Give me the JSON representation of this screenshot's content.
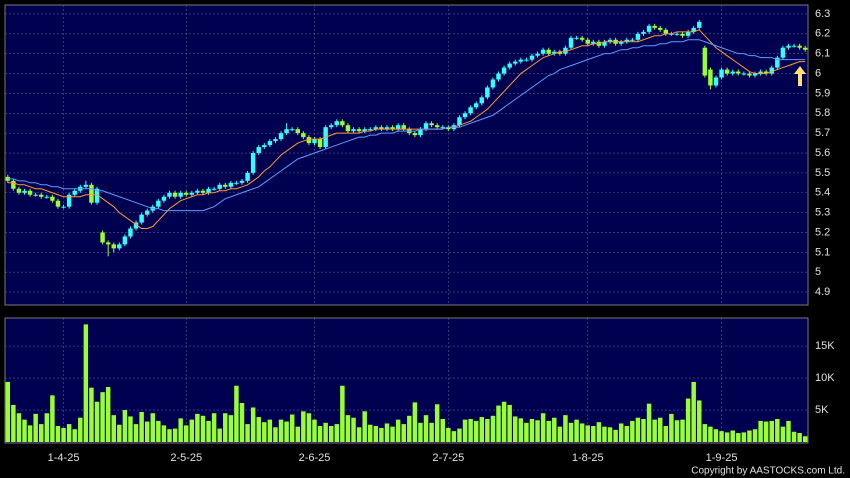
{
  "chart_data": {
    "type": "candlestick",
    "categories": [
      null,
      null,
      null,
      null,
      null,
      null,
      null,
      null,
      null,
      null,
      "1-4-25",
      null,
      null,
      null,
      null,
      null,
      null,
      null,
      null,
      null,
      null,
      null,
      null,
      null,
      null,
      null,
      null,
      null,
      null,
      null,
      null,
      null,
      "2-5-25",
      null,
      null,
      null,
      null,
      null,
      null,
      null,
      null,
      null,
      null,
      null,
      null,
      null,
      null,
      null,
      null,
      null,
      null,
      null,
      null,
      null,
      null,
      "2-6-25",
      null,
      null,
      null,
      null,
      null,
      null,
      null,
      null,
      null,
      null,
      null,
      null,
      null,
      null,
      null,
      null,
      null,
      null,
      null,
      null,
      null,
      null,
      null,
      "2-7-25",
      null,
      null,
      null,
      null,
      null,
      null,
      null,
      null,
      null,
      null,
      null,
      null,
      null,
      null,
      null,
      null,
      null,
      null,
      null,
      null,
      null,
      null,
      null,
      null,
      "1-8-25",
      null,
      null,
      null,
      null,
      null,
      null,
      null,
      null,
      null,
      null,
      null,
      null,
      null,
      null,
      null,
      null,
      null,
      null,
      null,
      null,
      null,
      null,
      null,
      "1-9-25",
      null,
      null,
      null,
      null,
      null,
      null,
      null,
      null,
      null,
      null,
      null,
      null,
      null,
      null,
      null
    ],
    "open": [
      5.48,
      5.46,
      5.42,
      5.4,
      5.41,
      5.39,
      5.39,
      5.38,
      5.38,
      5.36,
      5.33,
      5.33,
      5.39,
      5.41,
      5.43,
      5.44,
      5.35,
      5.2,
      5.15,
      5.14,
      5.12,
      5.14,
      5.18,
      5.22,
      5.25,
      5.29,
      5.31,
      5.33,
      5.36,
      5.38,
      5.4,
      5.38,
      5.4,
      5.39,
      5.4,
      5.41,
      5.4,
      5.42,
      5.42,
      5.44,
      5.43,
      5.45,
      5.45,
      5.46,
      5.5,
      5.6,
      5.63,
      5.64,
      5.66,
      5.67,
      5.7,
      5.72,
      5.72,
      5.7,
      5.68,
      5.65,
      5.67,
      5.63,
      5.73,
      5.74,
      5.76,
      5.74,
      5.71,
      5.72,
      5.71,
      5.72,
      5.72,
      5.73,
      5.72,
      5.73,
      5.72,
      5.74,
      5.72,
      5.7,
      5.69,
      5.72,
      5.75,
      5.74,
      5.73,
      5.73,
      5.72,
      5.74,
      5.78,
      5.8,
      5.83,
      5.85,
      5.88,
      5.93,
      5.97,
      6.0,
      6.03,
      6.05,
      6.06,
      6.07,
      6.07,
      6.09,
      6.1,
      6.12,
      6.1,
      6.11,
      6.1,
      6.13,
      6.18,
      6.18,
      6.17,
      6.15,
      6.16,
      6.14,
      6.16,
      6.17,
      6.15,
      6.16,
      6.17,
      6.17,
      6.2,
      6.21,
      6.24,
      6.23,
      6.22,
      6.2,
      6.2,
      6.2,
      6.19,
      6.21,
      6.23,
      6.13,
      6.02,
      5.94,
      5.98,
      6.02,
      6.0,
      6.01,
      6.0,
      6.0,
      5.99,
      6.0,
      6.01,
      6.0,
      6.03,
      6.08,
      6.13,
      6.14,
      6.14,
      6.13
    ],
    "high": [
      5.49,
      5.47,
      5.43,
      5.42,
      5.42,
      5.4,
      5.4,
      5.39,
      5.39,
      5.37,
      5.34,
      5.4,
      5.42,
      5.44,
      5.46,
      5.45,
      5.43,
      5.21,
      5.16,
      5.15,
      5.15,
      5.19,
      5.23,
      5.26,
      5.3,
      5.32,
      5.34,
      5.37,
      5.39,
      5.41,
      5.41,
      5.41,
      5.41,
      5.41,
      5.42,
      5.42,
      5.43,
      5.43,
      5.45,
      5.45,
      5.46,
      5.46,
      5.47,
      5.51,
      5.61,
      5.64,
      5.65,
      5.67,
      5.68,
      5.71,
      5.75,
      5.73,
      5.73,
      5.71,
      5.69,
      5.68,
      5.68,
      5.74,
      5.75,
      5.77,
      5.77,
      5.75,
      5.73,
      5.73,
      5.73,
      5.73,
      5.74,
      5.74,
      5.74,
      5.74,
      5.75,
      5.75,
      5.73,
      5.71,
      5.73,
      5.76,
      5.76,
      5.75,
      5.74,
      5.74,
      5.75,
      5.79,
      5.81,
      5.84,
      5.86,
      5.89,
      5.94,
      5.98,
      6.01,
      6.04,
      6.06,
      6.07,
      6.08,
      6.08,
      6.1,
      6.11,
      6.13,
      6.13,
      6.12,
      6.12,
      6.14,
      6.19,
      6.19,
      6.19,
      6.18,
      6.17,
      6.17,
      6.17,
      6.18,
      6.18,
      6.17,
      6.18,
      6.18,
      6.21,
      6.22,
      6.25,
      6.25,
      6.24,
      6.23,
      6.21,
      6.21,
      6.21,
      6.22,
      6.24,
      6.27,
      6.14,
      6.03,
      5.99,
      6.03,
      6.03,
      6.02,
      6.02,
      6.01,
      6.01,
      6.01,
      6.02,
      6.02,
      6.04,
      6.09,
      6.14,
      6.15,
      6.15,
      6.15,
      6.14
    ],
    "low": [
      5.45,
      5.41,
      5.39,
      5.39,
      5.38,
      5.38,
      5.37,
      5.37,
      5.35,
      5.32,
      5.32,
      5.32,
      5.38,
      5.4,
      5.42,
      5.34,
      5.34,
      5.14,
      5.08,
      5.1,
      5.11,
      5.13,
      5.17,
      5.21,
      5.24,
      5.28,
      5.3,
      5.32,
      5.35,
      5.37,
      5.37,
      5.37,
      5.38,
      5.38,
      5.39,
      5.39,
      5.39,
      5.41,
      5.41,
      5.42,
      5.42,
      5.44,
      5.44,
      5.45,
      5.49,
      5.59,
      5.62,
      5.63,
      5.65,
      5.66,
      5.69,
      5.71,
      5.69,
      5.67,
      5.64,
      5.64,
      5.62,
      5.62,
      5.72,
      5.73,
      5.73,
      5.7,
      5.7,
      5.7,
      5.7,
      5.71,
      5.71,
      5.71,
      5.71,
      5.71,
      5.71,
      5.71,
      5.69,
      5.68,
      5.68,
      5.71,
      5.73,
      5.72,
      5.72,
      5.71,
      5.71,
      5.73,
      5.77,
      5.79,
      5.82,
      5.84,
      5.87,
      5.92,
      5.96,
      5.99,
      6.02,
      6.04,
      6.05,
      6.06,
      6.06,
      6.08,
      6.09,
      6.09,
      6.09,
      6.09,
      6.09,
      6.12,
      6.17,
      6.16,
      6.14,
      6.14,
      6.13,
      6.13,
      6.15,
      6.14,
      6.14,
      6.15,
      6.16,
      6.16,
      6.19,
      6.2,
      6.22,
      6.21,
      6.19,
      6.19,
      6.19,
      6.18,
      6.18,
      6.2,
      6.22,
      5.98,
      5.92,
      5.93,
      5.97,
      5.99,
      5.99,
      5.99,
      5.99,
      5.98,
      5.98,
      5.99,
      5.99,
      5.99,
      6.02,
      6.07,
      6.12,
      6.13,
      6.12,
      6.11
    ],
    "close": [
      5.46,
      5.42,
      5.4,
      5.41,
      5.39,
      5.39,
      5.38,
      5.38,
      5.36,
      5.33,
      5.33,
      5.39,
      5.41,
      5.43,
      5.44,
      5.35,
      5.42,
      5.15,
      5.14,
      5.12,
      5.14,
      5.18,
      5.22,
      5.25,
      5.29,
      5.31,
      5.33,
      5.36,
      5.38,
      5.4,
      5.38,
      5.4,
      5.39,
      5.4,
      5.41,
      5.4,
      5.42,
      5.42,
      5.44,
      5.43,
      5.45,
      5.45,
      5.46,
      5.5,
      5.6,
      5.63,
      5.64,
      5.66,
      5.67,
      5.7,
      5.72,
      5.72,
      5.7,
      5.68,
      5.65,
      5.67,
      5.63,
      5.73,
      5.74,
      5.76,
      5.74,
      5.71,
      5.72,
      5.71,
      5.72,
      5.72,
      5.73,
      5.72,
      5.73,
      5.72,
      5.74,
      5.72,
      5.7,
      5.69,
      5.72,
      5.75,
      5.74,
      5.73,
      5.73,
      5.72,
      5.74,
      5.78,
      5.8,
      5.83,
      5.85,
      5.88,
      5.93,
      5.97,
      6.0,
      6.03,
      6.05,
      6.06,
      6.07,
      6.07,
      6.09,
      6.1,
      6.12,
      6.1,
      6.11,
      6.1,
      6.13,
      6.18,
      6.18,
      6.17,
      6.15,
      6.16,
      6.14,
      6.16,
      6.17,
      6.15,
      6.16,
      6.17,
      6.17,
      6.2,
      6.21,
      6.24,
      6.23,
      6.22,
      6.2,
      6.2,
      6.2,
      6.19,
      6.21,
      6.23,
      6.26,
      5.99,
      5.94,
      5.98,
      6.02,
      6.0,
      6.01,
      6.0,
      6.0,
      5.99,
      6.0,
      6.01,
      6.0,
      6.03,
      6.08,
      6.13,
      6.14,
      6.14,
      6.13,
      6.12
    ],
    "up_color": "#33ffff",
    "down_color": "#99ff33",
    "moving_averages": [
      {
        "color": "#ff9933",
        "values": [
          5.45,
          5.45,
          5.44,
          5.44,
          5.43,
          5.42,
          5.42,
          5.41,
          5.4,
          5.39,
          5.38,
          5.38,
          5.38,
          5.38,
          5.39,
          5.39,
          5.39,
          5.37,
          5.35,
          5.33,
          5.3,
          5.28,
          5.26,
          5.24,
          5.22,
          5.22,
          5.23,
          5.26,
          5.29,
          5.32,
          5.34,
          5.36,
          5.37,
          5.38,
          5.39,
          5.39,
          5.4,
          5.4,
          5.41,
          5.41,
          5.42,
          5.42,
          5.43,
          5.44,
          5.46,
          5.48,
          5.51,
          5.53,
          5.56,
          5.59,
          5.61,
          5.63,
          5.65,
          5.66,
          5.67,
          5.67,
          5.67,
          5.68,
          5.69,
          5.7,
          5.7,
          5.7,
          5.7,
          5.7,
          5.71,
          5.71,
          5.72,
          5.72,
          5.72,
          5.72,
          5.72,
          5.72,
          5.72,
          5.72,
          5.72,
          5.72,
          5.72,
          5.72,
          5.72,
          5.73,
          5.73,
          5.74,
          5.75,
          5.76,
          5.78,
          5.8,
          5.82,
          5.85,
          5.88,
          5.91,
          5.94,
          5.97,
          6.0,
          6.02,
          6.04,
          6.06,
          6.08,
          6.09,
          6.1,
          6.11,
          6.11,
          6.12,
          6.13,
          6.14,
          6.14,
          6.15,
          6.15,
          6.16,
          6.16,
          6.16,
          6.16,
          6.16,
          6.16,
          6.16,
          6.17,
          6.18,
          6.19,
          6.19,
          6.2,
          6.2,
          6.21,
          6.21,
          6.21,
          6.21,
          6.22,
          6.19,
          6.16,
          6.13,
          6.11,
          6.09,
          6.07,
          6.05,
          6.03,
          6.01,
          6.0,
          6.0,
          6.0,
          6.01,
          6.02,
          6.03,
          6.04,
          6.05,
          6.06,
          6.06
        ]
      },
      {
        "color": "#5b9bff",
        "values": [
          5.47,
          5.47,
          5.46,
          5.46,
          5.45,
          5.45,
          5.44,
          5.44,
          5.43,
          5.43,
          5.42,
          5.42,
          5.42,
          5.42,
          5.42,
          5.42,
          5.41,
          5.41,
          5.4,
          5.39,
          5.38,
          5.37,
          5.36,
          5.35,
          5.34,
          5.33,
          5.32,
          5.32,
          5.31,
          5.31,
          5.31,
          5.31,
          5.31,
          5.31,
          5.31,
          5.31,
          5.32,
          5.33,
          5.35,
          5.37,
          5.38,
          5.39,
          5.4,
          5.41,
          5.42,
          5.43,
          5.45,
          5.47,
          5.49,
          5.51,
          5.53,
          5.55,
          5.57,
          5.58,
          5.59,
          5.6,
          5.61,
          5.62,
          5.63,
          5.64,
          5.65,
          5.66,
          5.67,
          5.68,
          5.68,
          5.69,
          5.69,
          5.7,
          5.7,
          5.7,
          5.71,
          5.71,
          5.71,
          5.71,
          5.72,
          5.72,
          5.72,
          5.72,
          5.72,
          5.73,
          5.73,
          5.73,
          5.74,
          5.75,
          5.76,
          5.77,
          5.78,
          5.79,
          5.81,
          5.83,
          5.85,
          5.87,
          5.89,
          5.91,
          5.93,
          5.95,
          5.97,
          5.99,
          6.0,
          6.02,
          6.03,
          6.04,
          6.05,
          6.06,
          6.07,
          6.08,
          6.09,
          6.1,
          6.1,
          6.11,
          6.12,
          6.12,
          6.13,
          6.13,
          6.14,
          6.14,
          6.14,
          6.15,
          6.15,
          6.16,
          6.16,
          6.16,
          6.17,
          6.17,
          6.17,
          6.16,
          6.15,
          6.14,
          6.13,
          6.12,
          6.11,
          6.1,
          6.1,
          6.09,
          6.09,
          6.08,
          6.08,
          6.08,
          6.07,
          6.07,
          6.07,
          6.07,
          6.07,
          6.07
        ]
      }
    ],
    "ylim": [
      4.835,
      6.345
    ],
    "yticks": [
      4.9,
      5,
      5.1,
      5.2,
      5.3,
      5.4,
      5.5,
      5.6,
      5.7,
      5.8,
      5.9,
      6,
      6.1,
      6.2,
      6.3
    ],
    "grid": true,
    "volume": {
      "color": "#99ff33",
      "values": [
        9400,
        5800,
        4500,
        3500,
        2600,
        4400,
        2800,
        4500,
        7300,
        2500,
        2200,
        2800,
        2000,
        3800,
        18400,
        8500,
        6300,
        7800,
        8600,
        4200,
        2700,
        5000,
        4000,
        2800,
        4700,
        3200,
        4500,
        3300,
        2600,
        2000,
        2100,
        3700,
        2600,
        3500,
        4400,
        4100,
        3300,
        4500,
        2100,
        4500,
        4200,
        8800,
        6100,
        2800,
        5400,
        3900,
        3100,
        3500,
        2300,
        3500,
        3200,
        4300,
        2400,
        4800,
        4500,
        3500,
        2500,
        3000,
        2500,
        2800,
        8800,
        4200,
        3800,
        2300,
        4800,
        2700,
        2500,
        2200,
        2900,
        2400,
        3500,
        2800,
        4100,
        6200,
        3000,
        4200,
        3000,
        5900,
        3600,
        2200,
        1700,
        2100,
        3500,
        3600,
        3300,
        3900,
        3600,
        4100,
        5700,
        6300,
        5800,
        4000,
        3700,
        3000,
        3600,
        3400,
        4500,
        3300,
        3800,
        2400,
        4200,
        3000,
        3500,
        2900,
        2600,
        2500,
        3100,
        2400,
        2300,
        1900,
        2900,
        2500,
        3300,
        3800,
        3600,
        6000,
        3500,
        3800,
        2500,
        4400,
        3400,
        3500,
        6800,
        9400,
        6500,
        2800,
        2400,
        2000,
        1700,
        1500,
        1800,
        1400,
        1500,
        1800,
        2000,
        3300,
        3200,
        3300,
        3600,
        2400,
        3300,
        1600,
        1400,
        900
      ],
      "ylim": [
        0,
        19400
      ],
      "yticks": [
        {
          "value": 5000,
          "label": "5K"
        },
        {
          "value": 10000,
          "label": "10K"
        },
        {
          "value": 15000,
          "label": "15K"
        }
      ]
    },
    "footer": "Copyright by AASTOCKS.com Ltd."
  }
}
